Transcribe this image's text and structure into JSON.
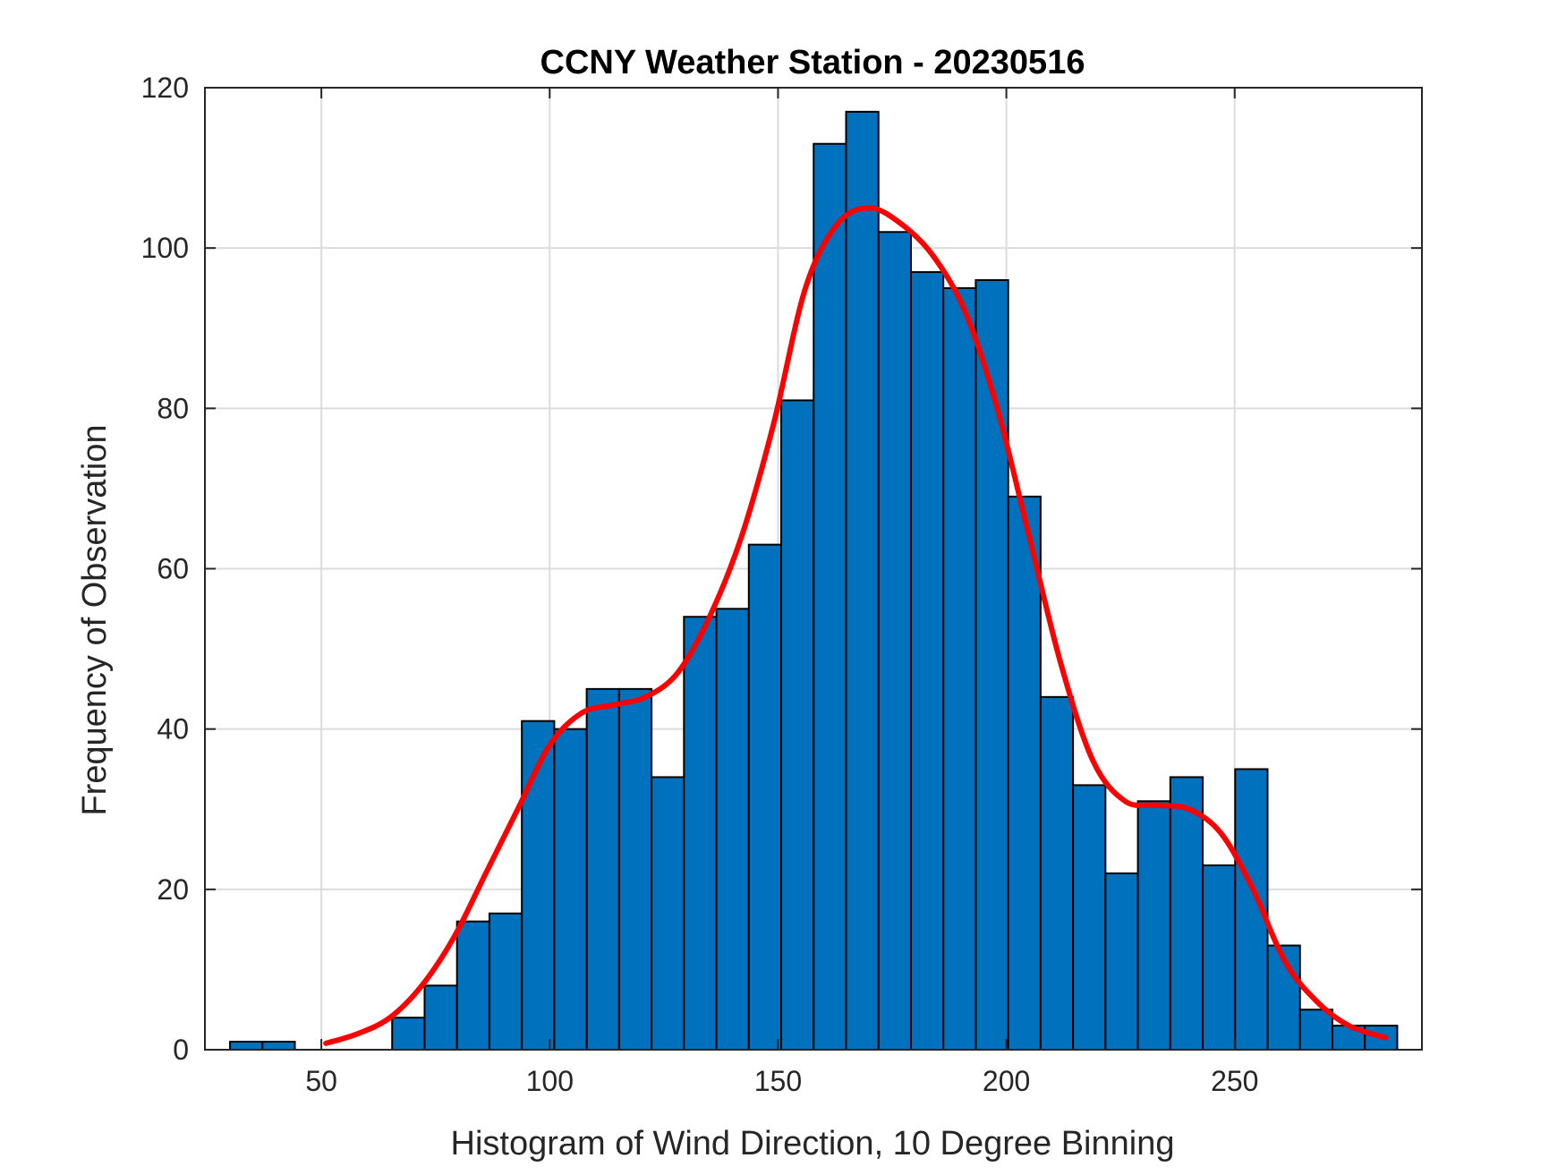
{
  "chart_data": {
    "type": "bar",
    "title": "CCNY Weather Station - 20230516",
    "xlabel": "Histogram of Wind Direction, 10 Degree Binning",
    "ylabel": "Frequency of Observation",
    "xlim": [
      24.5,
      291
    ],
    "ylim": [
      0,
      120
    ],
    "xticks": [
      50,
      100,
      150,
      200,
      250
    ],
    "yticks": [
      0,
      20,
      40,
      60,
      80,
      100,
      120
    ],
    "grid": true,
    "bin_width": 7.1,
    "bins": [
      {
        "left": 30.0,
        "value": 1
      },
      {
        "left": 37.1,
        "value": 1
      },
      {
        "left": 65.5,
        "value": 4
      },
      {
        "left": 72.6,
        "value": 8
      },
      {
        "left": 79.7,
        "value": 16
      },
      {
        "left": 86.8,
        "value": 17
      },
      {
        "left": 93.9,
        "value": 41
      },
      {
        "left": 101.0,
        "value": 40
      },
      {
        "left": 108.1,
        "value": 45
      },
      {
        "left": 115.2,
        "value": 45
      },
      {
        "left": 122.3,
        "value": 34
      },
      {
        "left": 129.4,
        "value": 54
      },
      {
        "left": 136.5,
        "value": 55
      },
      {
        "left": 143.6,
        "value": 63
      },
      {
        "left": 150.7,
        "value": 81
      },
      {
        "left": 157.8,
        "value": 113
      },
      {
        "left": 164.9,
        "value": 117
      },
      {
        "left": 172.0,
        "value": 102
      },
      {
        "left": 179.1,
        "value": 97
      },
      {
        "left": 186.2,
        "value": 95
      },
      {
        "left": 193.3,
        "value": 96
      },
      {
        "left": 200.4,
        "value": 69
      },
      {
        "left": 207.5,
        "value": 44
      },
      {
        "left": 214.6,
        "value": 33
      },
      {
        "left": 221.7,
        "value": 22
      },
      {
        "left": 228.8,
        "value": 31
      },
      {
        "left": 235.9,
        "value": 34
      },
      {
        "left": 243.0,
        "value": 23
      },
      {
        "left": 250.1,
        "value": 35
      },
      {
        "left": 257.2,
        "value": 13
      },
      {
        "left": 264.3,
        "value": 5
      },
      {
        "left": 271.4,
        "value": 3
      },
      {
        "left": 278.5,
        "value": 3
      }
    ],
    "fit_curve": {
      "x": [
        51,
        58,
        65,
        72,
        79,
        86,
        93,
        100,
        107,
        114,
        121,
        128,
        135,
        142,
        149,
        156,
        163,
        170,
        177,
        184,
        191,
        198,
        205,
        212,
        219,
        226,
        233,
        240,
        247,
        254,
        261,
        268,
        275,
        283
      ],
      "y": [
        0.8,
        2,
        4,
        8,
        14,
        22,
        30,
        38,
        42,
        43,
        44,
        47,
        54,
        64,
        78,
        95,
        103,
        105,
        103,
        99,
        92,
        80,
        64,
        48,
        36,
        31,
        30.5,
        30,
        27,
        20,
        11,
        6,
        3,
        1.5
      ]
    },
    "colors": {
      "bar_fill": "#0072BD",
      "bar_edge": "#000000",
      "curve": "#FF0000",
      "grid": "#DCDCDC",
      "axes": "#262626"
    }
  }
}
